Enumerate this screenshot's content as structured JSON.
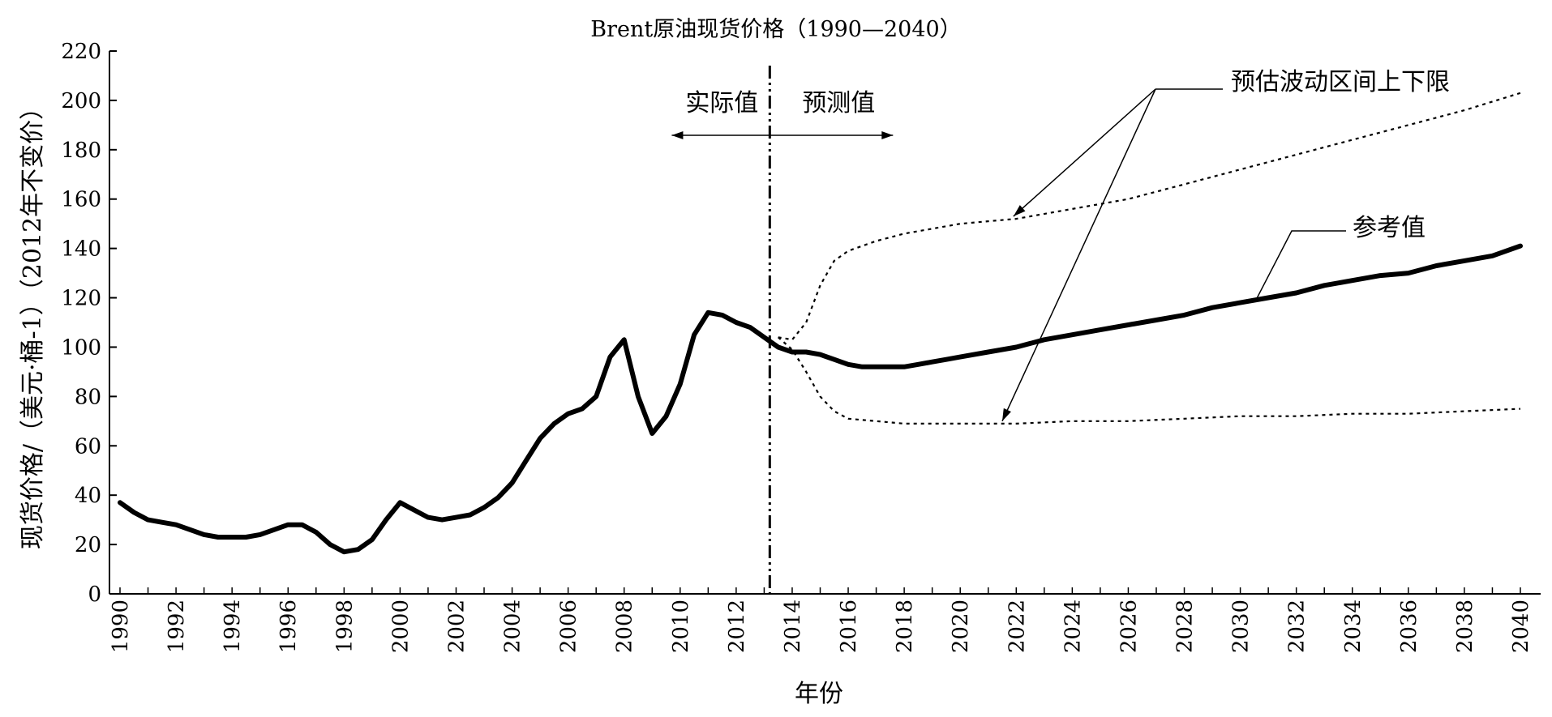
{
  "chart_data": {
    "type": "line",
    "title": "Brent原油现货价格（1990—2040）",
    "xlabel": "年份",
    "ylabel": "现货价格/（美元·桶-1）（2012年不变价）",
    "xlim": [
      1990,
      2040
    ],
    "ylim": [
      0,
      220
    ],
    "x_ticks": [
      "1990",
      "1992",
      "1994",
      "1996",
      "1998",
      "2000",
      "2002",
      "2004",
      "2006",
      "2008",
      "2010",
      "2012",
      "2014",
      "2016",
      "2018",
      "2020",
      "2022",
      "2024",
      "2026",
      "2028",
      "2030",
      "2032",
      "2034",
      "2036",
      "2038",
      "2040"
    ],
    "y_ticks": [
      "0",
      "20",
      "40",
      "60",
      "80",
      "100",
      "120",
      "140",
      "160",
      "180",
      "200",
      "220"
    ],
    "divider_year": 2013.2,
    "labels": {
      "actual": "实际值",
      "forecast": "预测值",
      "range": "预估波动区间上下限",
      "reference": "参考值"
    },
    "grid": false,
    "series": [
      {
        "name": "参考值",
        "style": "solid-thick",
        "x": [
          1990,
          1990.5,
          1991,
          1991.5,
          1992,
          1992.5,
          1993,
          1993.5,
          1994,
          1994.5,
          1995,
          1995.5,
          1996,
          1996.5,
          1997,
          1997.5,
          1998,
          1998.5,
          1999,
          1999.5,
          2000,
          2000.5,
          2001,
          2001.5,
          2002,
          2002.5,
          2003,
          2003.5,
          2004,
          2004.5,
          2005,
          2005.5,
          2006,
          2006.5,
          2007,
          2007.5,
          2008,
          2008.5,
          2009,
          2009.5,
          2010,
          2010.5,
          2011,
          2011.5,
          2012,
          2012.5,
          2013,
          2013.5,
          2014,
          2014.5,
          2015,
          2015.5,
          2016,
          2016.5,
          2017,
          2017.5,
          2018,
          2018.5,
          2019,
          2019.5,
          2020,
          2021,
          2022,
          2023,
          2024,
          2025,
          2026,
          2027,
          2028,
          2029,
          2030,
          2031,
          2032,
          2033,
          2034,
          2035,
          2036,
          2037,
          2038,
          2039,
          2040
        ],
        "values": [
          37,
          33,
          30,
          29,
          28,
          26,
          24,
          23,
          23,
          23,
          24,
          26,
          28,
          28,
          25,
          20,
          17,
          18,
          22,
          30,
          37,
          34,
          31,
          30,
          31,
          32,
          35,
          39,
          45,
          54,
          63,
          69,
          73,
          75,
          80,
          96,
          103,
          80,
          65,
          72,
          85,
          105,
          114,
          113,
          110,
          108,
          104,
          100,
          98,
          98,
          97,
          95,
          93,
          92,
          92,
          92,
          92,
          93,
          94,
          95,
          96,
          98,
          100,
          103,
          105,
          107,
          109,
          111,
          113,
          116,
          118,
          120,
          122,
          125,
          127,
          129,
          130,
          133,
          135,
          137,
          141
        ]
      },
      {
        "name": "上限",
        "style": "dotted",
        "x": [
          2013.5,
          2014,
          2014.5,
          2015,
          2015.5,
          2016,
          2017,
          2018,
          2019,
          2020,
          2021,
          2022,
          2024,
          2026,
          2028,
          2030,
          2032,
          2034,
          2036,
          2038,
          2040
        ],
        "values": [
          104,
          103,
          110,
          125,
          135,
          139,
          143,
          146,
          148,
          150,
          151,
          152,
          156,
          160,
          166,
          172,
          178,
          184,
          190,
          196,
          203
        ]
      },
      {
        "name": "下限",
        "style": "dotted",
        "x": [
          2013.5,
          2014,
          2014.5,
          2015,
          2015.5,
          2016,
          2017,
          2018,
          2019,
          2020,
          2021,
          2022,
          2024,
          2026,
          2028,
          2030,
          2032,
          2034,
          2036,
          2038,
          2040
        ],
        "values": [
          104,
          99,
          90,
          80,
          74,
          71,
          70,
          69,
          69,
          69,
          69,
          69,
          70,
          70,
          71,
          72,
          72,
          73,
          73,
          74,
          75
        ]
      }
    ]
  }
}
